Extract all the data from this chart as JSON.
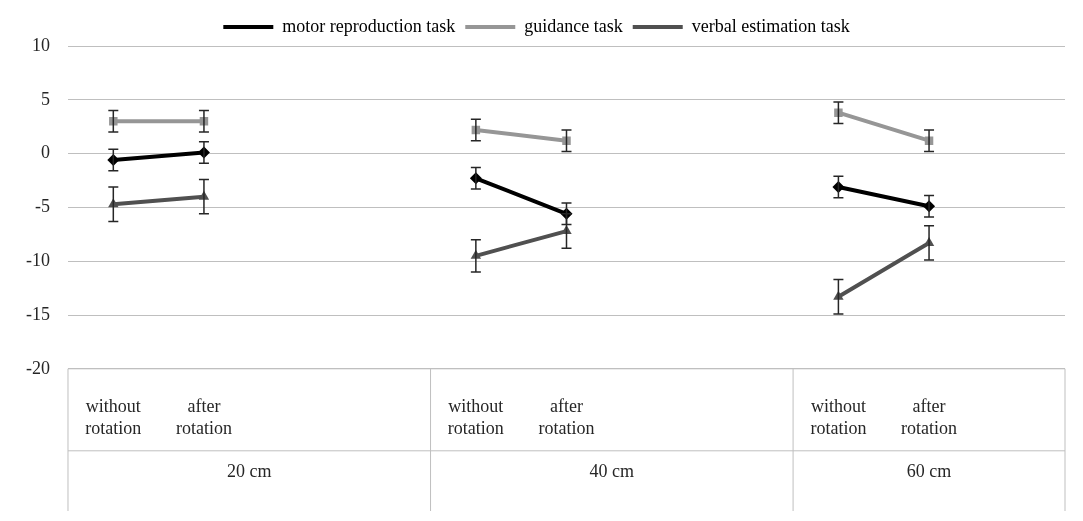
{
  "chart_data": {
    "type": "line",
    "categories": [
      "without rotation",
      "after rotation",
      null,
      null,
      "without rotation",
      "after rotation",
      null,
      null,
      "without rotation",
      "after rotation",
      null
    ],
    "series": [
      {
        "name": "motor reproduction task",
        "color": "#000000",
        "marker": "diamond",
        "values": [
          -0.6,
          0.1,
          null,
          null,
          -2.3,
          -5.6,
          null,
          null,
          -3.1,
          -4.9,
          null
        ],
        "errors": [
          1,
          1,
          null,
          null,
          1,
          1,
          null,
          null,
          1,
          1,
          null
        ]
      },
      {
        "name": "guidance task",
        "color": "#969696",
        "marker": "square",
        "values": [
          3,
          3,
          null,
          null,
          2.2,
          1.2,
          null,
          null,
          3.8,
          1.2,
          null
        ],
        "errors": [
          1,
          1,
          null,
          null,
          1,
          1,
          null,
          null,
          1,
          1,
          null
        ]
      },
      {
        "name": "verbal estimation task",
        "color": "#505050",
        "marker": "triangle",
        "values": [
          -4.7,
          -4,
          null,
          null,
          -9.5,
          -7.2,
          null,
          null,
          -13.3,
          -8.3,
          null
        ],
        "errors": [
          1.6,
          1.6,
          null,
          null,
          1.5,
          1.6,
          null,
          null,
          1.6,
          1.6,
          null
        ]
      }
    ],
    "annotations": [
      "20 cm",
      "40 cm",
      "60 cm"
    ],
    "ylim": [
      -20,
      10
    ],
    "yticks": [
      -20,
      -15,
      -10,
      -5,
      0,
      5,
      10
    ],
    "grid": "y",
    "legend": "top"
  }
}
